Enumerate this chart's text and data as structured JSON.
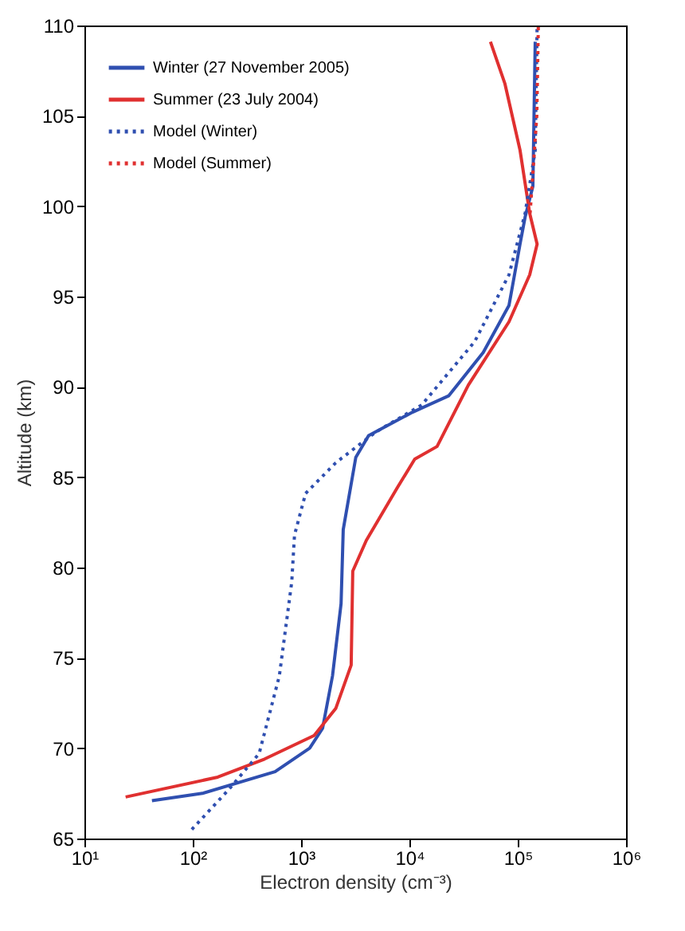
{
  "chart_data": {
    "type": "line",
    "xlabel": "Electron density (cm⁻³)",
    "ylabel": "Altitude (km)",
    "log": "x",
    "xlim": [
      10,
      1000000
    ],
    "xticks": [
      {
        "value": 10,
        "label": "10¹"
      },
      {
        "value": 100,
        "label": "10²"
      },
      {
        "value": 1000,
        "label": "10³"
      },
      {
        "value": 10000,
        "label": "10⁴"
      },
      {
        "value": 100000,
        "label": "10⁵"
      },
      {
        "value": 1000000,
        "label": "10⁶"
      }
    ],
    "ylim": [
      65,
      110
    ],
    "yticks": [
      65,
      70,
      75,
      80,
      85,
      90,
      95,
      100,
      105,
      110
    ],
    "grid": false,
    "legend": "top left",
    "marker": "none",
    "series": [
      {
        "name": "Winter (27 November 2005)",
        "color": "#2f4fb0",
        "line_style": "solid",
        "x": [
          42,
          123,
          575,
          1200,
          1580,
          1950,
          2340,
          2450,
          3200,
          4200,
          10700,
          23000,
          48000,
          83000,
          105000,
          117000,
          138000,
          145000
        ],
        "values": [
          67.1,
          67.5,
          68.7,
          70.0,
          71.1,
          74.0,
          78.0,
          82.1,
          86.1,
          87.3,
          88.6,
          89.5,
          91.9,
          94.5,
          97.9,
          99.4,
          101.1,
          109.1
        ]
      },
      {
        "name": "Summer (23 July 2004)",
        "color": "#e03030",
        "line_style": "solid",
        "x": [
          24,
          170,
          460,
          1320,
          2090,
          2900,
          3000,
          4000,
          7700,
          11200,
          18000,
          35000,
          83000,
          129000,
          151000,
          129000,
          105000,
          76000,
          56000
        ],
        "values": [
          67.3,
          68.4,
          69.4,
          70.7,
          72.2,
          74.6,
          79.8,
          81.5,
          84.4,
          86.0,
          86.7,
          90.1,
          93.6,
          96.2,
          97.9,
          99.6,
          103.1,
          106.8,
          109.1
        ]
      },
      {
        "name": "Model (Winter)",
        "color": "#2f4fb0",
        "line_style": "dotted",
        "x": [
          98,
          214,
          410,
          630,
          820,
          870,
          1100,
          2090,
          4900,
          13000,
          40000,
          83000,
          117000,
          145000,
          151000
        ],
        "values": [
          65.5,
          67.7,
          69.7,
          74.0,
          79.2,
          81.8,
          84.1,
          85.8,
          87.5,
          89.0,
          92.5,
          96.2,
          99.6,
          103.1,
          110
        ]
      },
      {
        "name": "Model (Summer)",
        "color": "#e03030",
        "line_style": "dotted",
        "x": [
          130000,
          150000,
          155000
        ],
        "values": [
          99.6,
          105,
          110
        ]
      }
    ]
  }
}
